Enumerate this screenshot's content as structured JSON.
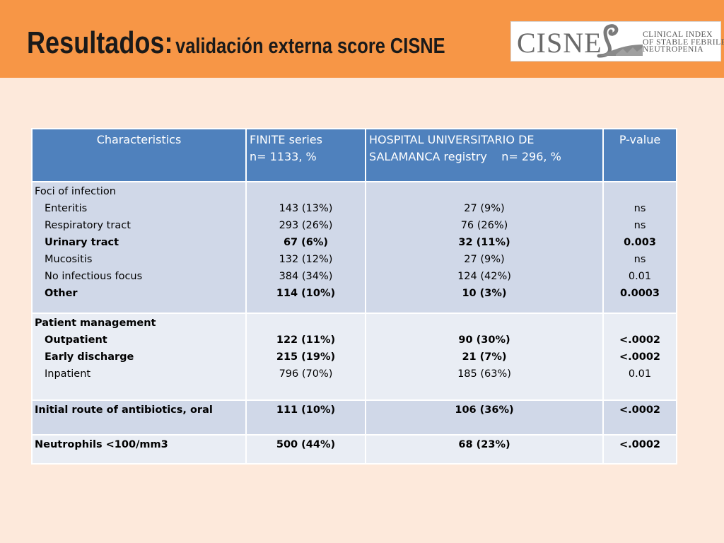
{
  "title": {
    "main": "Resultados:",
    "sub": "validación externa score CISNE"
  },
  "logo": {
    "word": "CISNE",
    "lines": [
      "CLINICAL INDEX",
      "OF STABLE FEBRILE",
      "NEUTROPENIA"
    ]
  },
  "table": {
    "headers": {
      "characteristics": "Characteristics",
      "finite_line1": "FINITE series",
      "finite_line2": "n= 1133, %",
      "hus_line1": "HOSPITAL UNIVERSITARIO DE",
      "hus_line2": "SALAMANCA registry    n= 296, %",
      "pvalue": "P-value"
    },
    "groups": [
      {
        "title": "Foci of infection",
        "rows": [
          {
            "label": "Enteritis",
            "finite": "143 (13%)",
            "hus": "27 (9%)",
            "p": "ns"
          },
          {
            "label": "Respiratory tract",
            "finite": "293 (26%)",
            "hus": "76 (26%)",
            "p": "ns"
          },
          {
            "label": "Urinary tract",
            "finite": "67 (6%)",
            "hus": "32 (11%)",
            "p": "0.003"
          },
          {
            "label": "Mucositis",
            "finite": "132 (12%)",
            "hus": "27 (9%)",
            "p": "ns"
          },
          {
            "label": "No infectious focus",
            "finite": "384 (34%)",
            "hus": "124 (42%)",
            "p": "0.01"
          },
          {
            "label": "Other",
            "finite": "114 (10%)",
            "hus": "10 (3%)",
            "p": "0.0003"
          }
        ]
      },
      {
        "title": "Patient management",
        "rows": [
          {
            "label": "Outpatient",
            "finite": "122 (11%)",
            "hus": "90 (30%)",
            "p": "<.0002"
          },
          {
            "label": "Early discharge",
            "finite": "215 (19%)",
            "hus": "21 (7%)",
            "p": "<.0002"
          },
          {
            "label": "Inpatient",
            "finite": "796 (70%)",
            "hus": "185 (63%)",
            "p": "0.01"
          }
        ]
      },
      {
        "title": "Initial route of antibiotics, oral",
        "finite": "111 (10%)",
        "hus": "106 (36%)",
        "p": "<.0002"
      },
      {
        "title": "Neutrophils <100/mm3",
        "finite": "500 (44%)",
        "hus": "68 (23%)",
        "p": "<.0002"
      }
    ]
  },
  "colors": {
    "header_bar": "#f79646",
    "background": "#fde9db",
    "table_header": "#4f81bd",
    "row_dark": "#d0d8e8",
    "row_light": "#e9edf4"
  }
}
